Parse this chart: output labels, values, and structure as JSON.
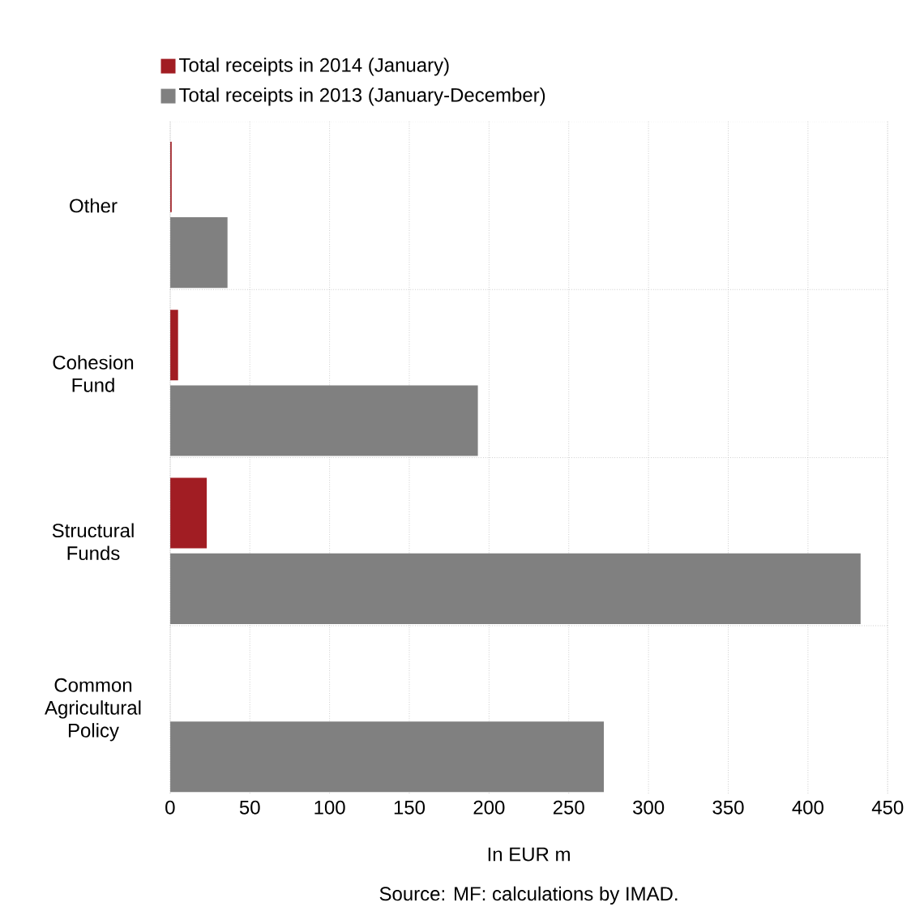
{
  "chart_data": {
    "type": "bar",
    "orientation": "horizontal",
    "categories": [
      "Other",
      "Cohesion Fund",
      "Structural Funds",
      "Common Agricultural Policy"
    ],
    "series": [
      {
        "name": "Total receipts in 2014 (January)",
        "color": "#a11d23",
        "values": [
          1,
          5,
          23,
          0
        ]
      },
      {
        "name": "Total receipts in 2013 (January-December)",
        "color": "#808080",
        "values": [
          36,
          193,
          433,
          272
        ]
      }
    ],
    "xlim": [
      0,
      450
    ],
    "xticks": [
      0,
      50,
      100,
      150,
      200,
      250,
      300,
      350,
      400,
      450
    ],
    "xlabel": "In EUR m",
    "annotations": [
      "Source: MF: calculations by IMAD."
    ],
    "grid": true,
    "legend": "top"
  }
}
